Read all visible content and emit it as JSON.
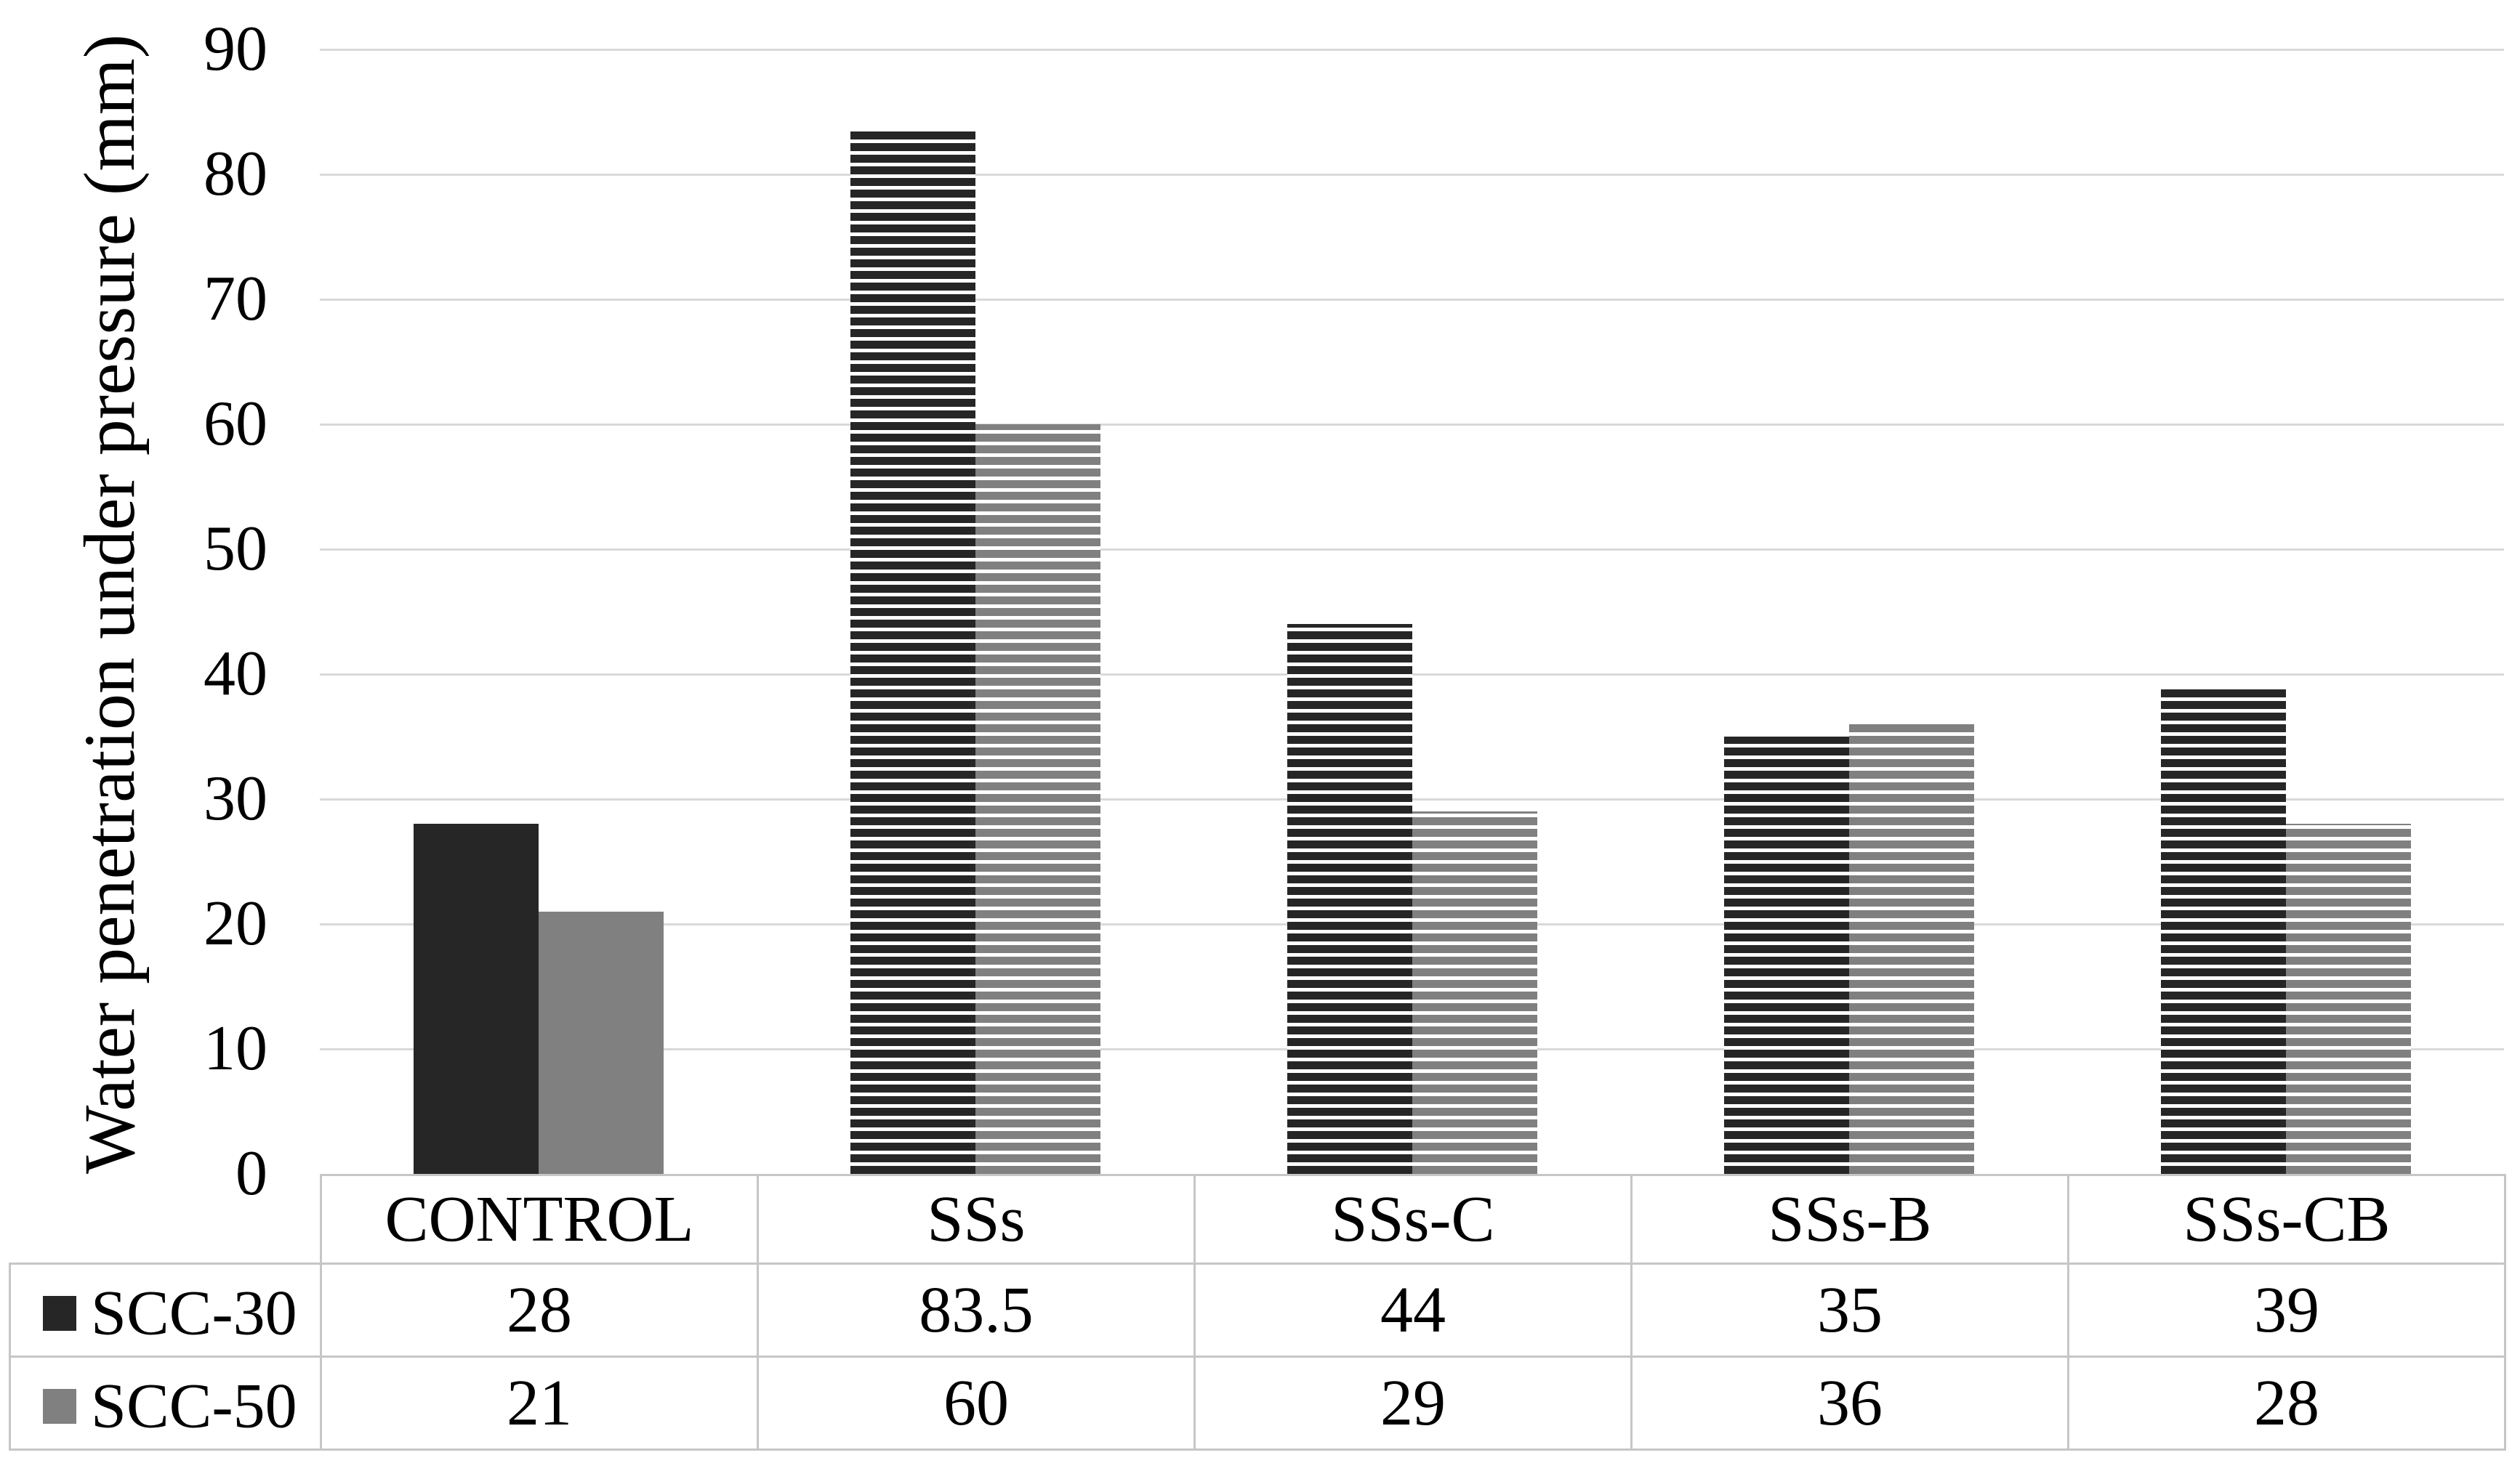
{
  "chart_data": {
    "type": "bar",
    "title": "",
    "xlabel": "",
    "ylabel": "Water penetration under pressure (mm)",
    "categories": [
      "CONTROL",
      "SSs",
      "SSs-C",
      "SSs-B",
      "SSs-CB"
    ],
    "series": [
      {
        "name": "SCC-30",
        "color": "#262626",
        "values": [
          28,
          83.5,
          44,
          35,
          39
        ]
      },
      {
        "name": "SCC-50",
        "color": "#808080",
        "values": [
          21,
          60,
          29,
          36,
          28
        ]
      }
    ],
    "category_fill_styles": [
      "solid",
      "hstripe",
      "hstripe",
      "hstripe",
      "hstripe"
    ],
    "ylim": [
      0,
      90
    ],
    "ytick_step": 10,
    "yticks": [
      0,
      10,
      20,
      30,
      40,
      50,
      60,
      70,
      80,
      90
    ],
    "grid": true,
    "legend_position": "data-table-row-headers",
    "data_table_shown": true
  },
  "colors": {
    "background": "#ffffff",
    "gridline": "#d9d9d9",
    "table_border": "#c6c6c6",
    "stripe_gap": "#ffffff",
    "text": "#000000"
  }
}
